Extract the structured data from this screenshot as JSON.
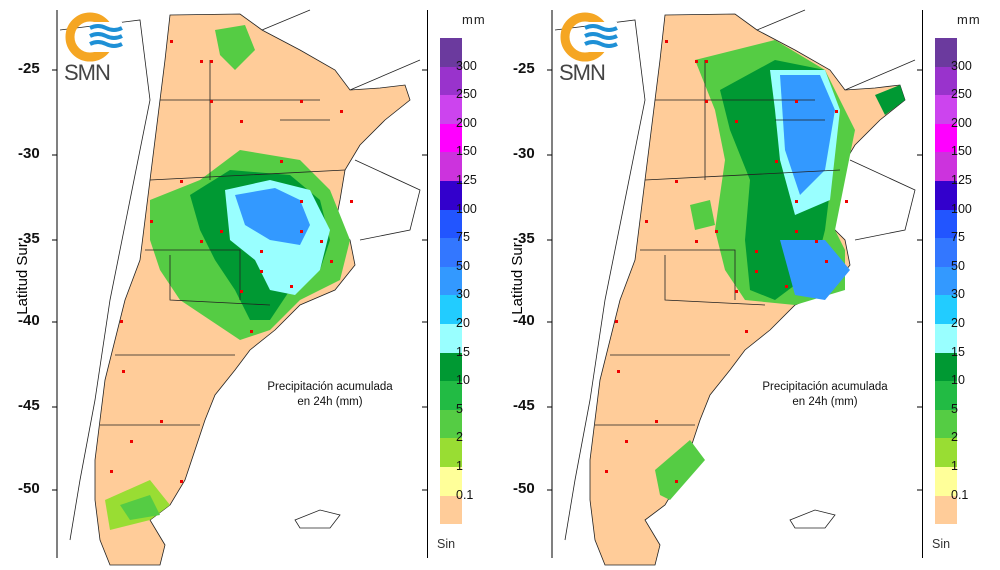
{
  "logo_text": "SMN",
  "y_axis_label": "Latitud Sur",
  "y_ticks": [
    "-25",
    "-30",
    "-35",
    "-40",
    "-45",
    "-50"
  ],
  "caption_line1": "Precipitación acumulada",
  "caption_line2": "en 24h (mm)",
  "legend": {
    "unit": "mm",
    "labels": [
      "300",
      "250",
      "200",
      "150",
      "125",
      "100",
      "75",
      "50",
      "30",
      "20",
      "15",
      "10",
      "5",
      "2",
      "1",
      "0.1"
    ],
    "bottom_label": "Sin",
    "colors": [
      "#6b3a9e",
      "#9933cc",
      "#cc44ee",
      "#ff00ff",
      "#cc33dd",
      "#3300cc",
      "#2255ff",
      "#3377ff",
      "#3399ff",
      "#22ccff",
      "#99ffff",
      "#009933",
      "#22bb44",
      "#55cc44",
      "#99dd33",
      "#ffff99",
      "#ffcc99"
    ]
  },
  "panels": [
    {
      "name": "left-map"
    },
    {
      "name": "right-map"
    }
  ]
}
